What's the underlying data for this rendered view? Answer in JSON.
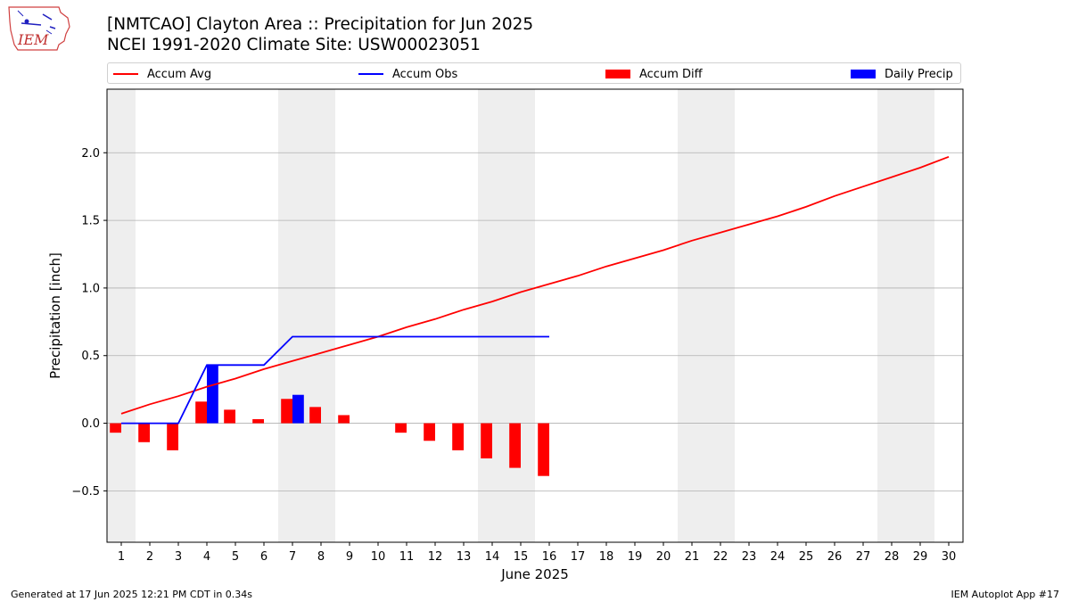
{
  "header": {
    "logo_text": "IEM",
    "title": "[NMTCAO] Clayton Area :: Precipitation for Jun 2025",
    "subtitle": "NCEI 1991-2020 Climate Site: USW00023051"
  },
  "legend": {
    "items": [
      {
        "label": "Accum Avg",
        "kind": "line",
        "color": "#ff0000"
      },
      {
        "label": "Accum Obs",
        "kind": "line",
        "color": "#0000ff"
      },
      {
        "label": "Accum Diff",
        "kind": "rect",
        "color": "#ff0000"
      },
      {
        "label": "Daily Precip",
        "kind": "rect",
        "color": "#0000ff"
      }
    ]
  },
  "footer": {
    "left": "Generated at 17 Jun 2025 12:21 PM CDT in 0.34s",
    "right": "IEM Autoplot App #17"
  },
  "chart_data": {
    "type": "bar",
    "xlabel": "June 2025",
    "ylabel": "Precipitation [inch]",
    "xlim": [
      0.5,
      30.5
    ],
    "ylim": [
      -0.88,
      2.47
    ],
    "yticks": [
      -0.5,
      0.0,
      0.5,
      1.0,
      1.5,
      2.0
    ],
    "ytick_labels": [
      "−0.5",
      "0.0",
      "0.5",
      "1.0",
      "1.5",
      "2.0"
    ],
    "days": [
      1,
      2,
      3,
      4,
      5,
      6,
      7,
      8,
      9,
      10,
      11,
      12,
      13,
      14,
      15,
      16,
      17,
      18,
      19,
      20,
      21,
      22,
      23,
      24,
      25,
      26,
      27,
      28,
      29,
      30
    ],
    "weekend_shading": [
      [
        0.5,
        1.5
      ],
      [
        6.5,
        8.5
      ],
      [
        13.5,
        15.5
      ],
      [
        20.5,
        22.5
      ],
      [
        27.5,
        29.5
      ]
    ],
    "grid": "y",
    "colors": {
      "avg": "#ff0000",
      "obs": "#0000ff",
      "diff": "#ff0000",
      "daily": "#0000ff",
      "shade": "#eeeeee",
      "grid": "#b0b0b0"
    },
    "series": [
      {
        "name": "Accum Avg",
        "type": "line",
        "x": [
          1,
          2,
          3,
          4,
          5,
          6,
          7,
          8,
          9,
          10,
          11,
          12,
          13,
          14,
          15,
          16,
          17,
          18,
          19,
          20,
          21,
          22,
          23,
          24,
          25,
          26,
          27,
          28,
          29,
          30
        ],
        "values": [
          0.07,
          0.14,
          0.2,
          0.27,
          0.33,
          0.4,
          0.46,
          0.52,
          0.58,
          0.64,
          0.71,
          0.77,
          0.84,
          0.9,
          0.97,
          1.03,
          1.09,
          1.16,
          1.22,
          1.28,
          1.35,
          1.41,
          1.47,
          1.53,
          1.6,
          1.68,
          1.75,
          1.82,
          1.89,
          1.97
        ]
      },
      {
        "name": "Accum Obs",
        "type": "line",
        "x": [
          1,
          2,
          3,
          4,
          5,
          6,
          7,
          8,
          9,
          10,
          11,
          12,
          13,
          14,
          15,
          16
        ],
        "values": [
          0.0,
          0.0,
          0.0,
          0.43,
          0.43,
          0.43,
          0.64,
          0.64,
          0.64,
          0.64,
          0.64,
          0.64,
          0.64,
          0.64,
          0.64,
          0.64
        ]
      },
      {
        "name": "Accum Diff",
        "type": "bar",
        "x": [
          1,
          2,
          3,
          4,
          5,
          6,
          7,
          8,
          9,
          10,
          11,
          12,
          13,
          14,
          15,
          16
        ],
        "values": [
          -0.07,
          -0.14,
          -0.2,
          0.16,
          0.1,
          0.03,
          0.18,
          0.12,
          0.06,
          0.0,
          -0.07,
          -0.13,
          -0.2,
          -0.26,
          -0.33,
          -0.39
        ]
      },
      {
        "name": "Daily Precip",
        "type": "bar",
        "x": [
          4,
          7
        ],
        "values": [
          0.43,
          0.21
        ]
      }
    ]
  }
}
